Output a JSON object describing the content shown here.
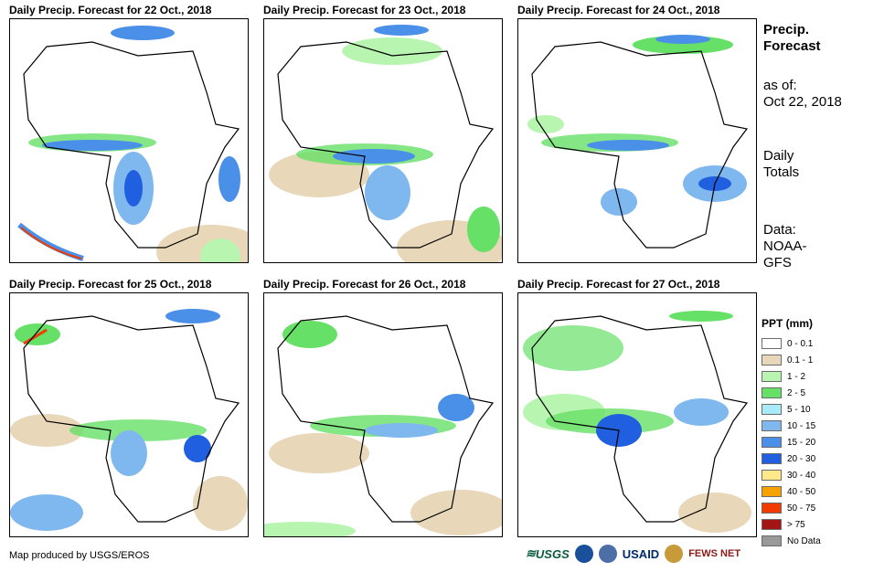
{
  "panels": [
    {
      "title": "Daily Precip. Forecast for 22 Oct., 2018"
    },
    {
      "title": "Daily Precip. Forecast for 23 Oct., 2018"
    },
    {
      "title": "Daily Precip. Forecast for 24 Oct., 2018"
    },
    {
      "title": "Daily Precip. Forecast for 25 Oct., 2018"
    },
    {
      "title": "Daily Precip. Forecast for 26 Oct., 2018"
    },
    {
      "title": "Daily Precip. Forecast for 27 Oct., 2018"
    }
  ],
  "sidebar": {
    "title_line1": "Precip.",
    "title_line2": "Forecast",
    "asof_line1": "as of:",
    "asof_line2": "Oct 22, 2018",
    "totals_line1": "Daily",
    "totals_line2": "Totals",
    "data_line1": "Data:",
    "data_line2": "NOAA-",
    "data_line3": "GFS"
  },
  "legend": {
    "title": "PPT (mm)",
    "items": [
      {
        "label": "0 - 0.1",
        "color": "#ffffff"
      },
      {
        "label": "0.1 - 1",
        "color": "#e8d7b8"
      },
      {
        "label": "1 - 2",
        "color": "#b8f5b0"
      },
      {
        "label": "2 - 5",
        "color": "#66e066"
      },
      {
        "label": "5 - 10",
        "color": "#a8eaf7"
      },
      {
        "label": "10 - 15",
        "color": "#7fb7ef"
      },
      {
        "label": "15 - 20",
        "color": "#4a8fe8"
      },
      {
        "label": "20 - 30",
        "color": "#1f5fe0"
      },
      {
        "label": "30 - 40",
        "color": "#fde98a"
      },
      {
        "label": "40 - 50",
        "color": "#f5a300"
      },
      {
        "label": "50 - 75",
        "color": "#f03c00"
      },
      {
        "label": "> 75",
        "color": "#a31515"
      },
      {
        "label": "No Data",
        "color": "#999999"
      }
    ]
  },
  "credit": "Map produced by USGS/EROS",
  "logos": {
    "usgs": "USGS",
    "usaid": "USAID",
    "fews": "FEWS NET"
  }
}
